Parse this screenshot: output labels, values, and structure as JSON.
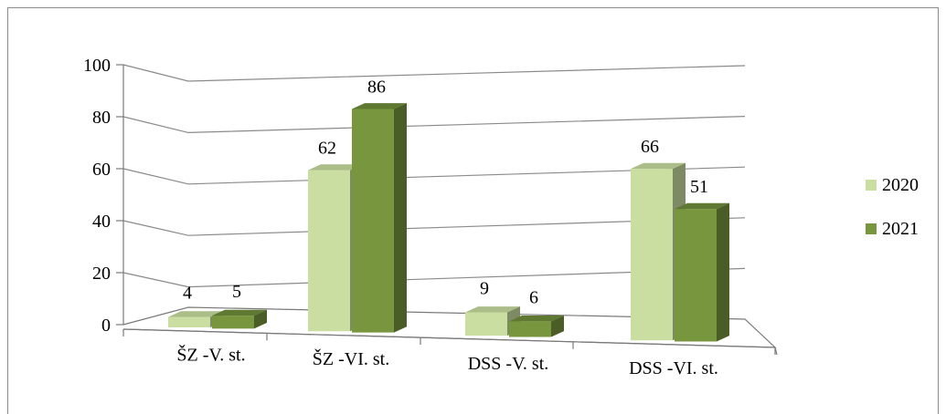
{
  "chart_data": {
    "type": "bar",
    "categories": [
      "ŠZ -V. st.",
      "ŠZ -VI. st.",
      "DSS -V. st.",
      "DSS -VI. st."
    ],
    "series": [
      {
        "name": "2020",
        "values": [
          4,
          62,
          9,
          66
        ],
        "color": "#c9dea0"
      },
      {
        "name": "2021",
        "values": [
          5,
          86,
          6,
          51
        ],
        "color": "#77963e"
      }
    ],
    "y_ticks": [
      "0",
      "20",
      "40",
      "60",
      "80",
      "100"
    ],
    "ylim": [
      0,
      100
    ],
    "grid": true,
    "legend_position": "right",
    "title": "",
    "xlabel": "",
    "ylabel": ""
  }
}
